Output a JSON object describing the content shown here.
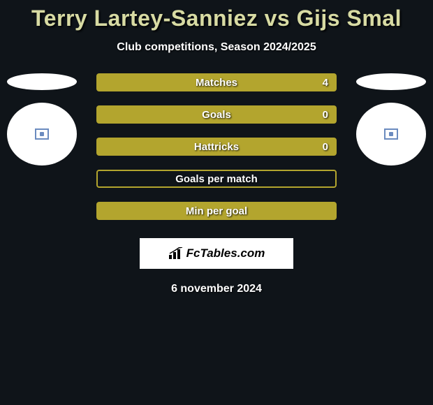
{
  "header": {
    "title": "Terry Lartey-Sanniez vs Gijs Smal",
    "subtitle": "Club competitions, Season 2024/2025"
  },
  "palette": {
    "bg": "#0f1419",
    "title_color": "#d8dba3",
    "bar_color": "#b3a52e",
    "text_color": "#ffffff"
  },
  "stats": [
    {
      "label": "Matches",
      "value": "4",
      "filled": true,
      "show_value": true
    },
    {
      "label": "Goals",
      "value": "0",
      "filled": true,
      "show_value": true
    },
    {
      "label": "Hattricks",
      "value": "0",
      "filled": true,
      "show_value": true
    },
    {
      "label": "Goals per match",
      "value": "",
      "filled": false,
      "show_value": false
    },
    {
      "label": "Min per goal",
      "value": "",
      "filled": true,
      "show_value": false
    }
  ],
  "logo": {
    "text": "FcTables.com"
  },
  "footer": {
    "date": "6 november 2024"
  }
}
